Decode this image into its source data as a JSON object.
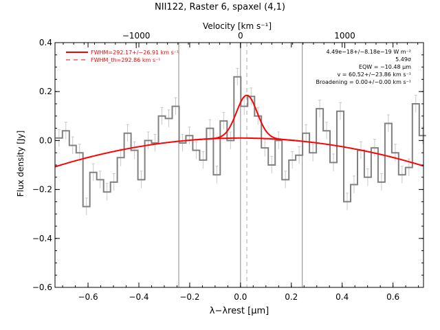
{
  "chart_data": {
    "type": "line",
    "title": "NII122, Raster 6, spaxel (4,1)",
    "xlabel": "λ−λrest [μm]",
    "ylabel": "Flux density [Jy]",
    "top_axis_label": "Velocity [km s⁻¹]",
    "xlim": [
      -0.73,
      0.72
    ],
    "ylim": [
      -0.6,
      0.4
    ],
    "top_xlim": [
      -1779,
      1755
    ],
    "x_ticks": [
      -0.6,
      -0.4,
      -0.2,
      0.0,
      0.2,
      0.4,
      0.6
    ],
    "x_tick_labels": [
      "−0.6",
      "−0.4",
      "−0.2",
      "0.0",
      "0.2",
      "0.4",
      "0.6"
    ],
    "y_ticks": [
      -0.6,
      -0.4,
      -0.2,
      0.0,
      0.2,
      0.4
    ],
    "y_tick_labels": [
      "−0.6",
      "−0.4",
      "−0.2",
      "0.0",
      "0.2",
      "0.4"
    ],
    "top_ticks": [
      -1000,
      0,
      1000
    ],
    "top_tick_labels": [
      "−1000",
      "0",
      "1000"
    ],
    "vertical_lines_solid": [
      -0.243,
      0.0,
      0.243
    ],
    "vertical_line_dashed": 0.0248,
    "legend": [
      {
        "label": "FWHM=292.17+/−26.91 km s⁻¹",
        "style": "solid",
        "color": "#ff0000"
      },
      {
        "label": "FWHM_th=292.86 km s⁻¹",
        "style": "dashed",
        "color": "#ff0000"
      }
    ],
    "annotations": [
      "4.49e−18+/−8.18e−19 W m⁻²",
      "5.49σ",
      "EQW = −10.48 μm",
      "v = 60.52+/−23.86 km s⁻¹",
      "Broadening = 0.00+/−0.00 km s⁻¹"
    ],
    "fit": {
      "baseline_quadratic": [
        0.01,
        0.0,
        -0.22
      ],
      "gaussian": {
        "amplitude": 0.175,
        "center": 0.0248,
        "sigma": 0.0406
      },
      "color": "#ff0000"
    },
    "series": [
      {
        "type": "step",
        "color": "#808080",
        "x": [
          -0.7278,
          -0.7008,
          -0.6738,
          -0.6468,
          -0.6198,
          -0.5928,
          -0.5658,
          -0.5388,
          -0.5118,
          -0.4848,
          -0.4578,
          -0.4308,
          -0.4038,
          -0.3768,
          -0.3498,
          -0.3228,
          -0.2958,
          -0.2688,
          -0.2418,
          -0.2148,
          -0.1878,
          -0.1608,
          -0.1338,
          -0.1068,
          -0.0798,
          -0.0528,
          -0.0258,
          0.0012,
          0.0282,
          0.0552,
          0.0822,
          0.1092,
          0.1362,
          0.1632,
          0.1902,
          0.2172,
          0.2442,
          0.2712,
          0.2982,
          0.3252,
          0.3522,
          0.3792,
          0.4062,
          0.4332,
          0.4602,
          0.4872,
          0.5142,
          0.5412,
          0.5682,
          0.5952,
          0.6222,
          0.6492,
          0.6762,
          0.7032
        ],
        "y": [
          0.01,
          0.04,
          -0.02,
          -0.05,
          -0.27,
          -0.13,
          -0.16,
          -0.21,
          -0.17,
          -0.07,
          0.03,
          -0.04,
          -0.16,
          0.0,
          -0.01,
          0.1,
          0.09,
          0.14,
          -0.01,
          0.02,
          -0.04,
          -0.08,
          0.05,
          -0.14,
          0.08,
          0.0,
          0.26,
          0.14,
          0.18,
          0.1,
          -0.03,
          -0.1,
          0.0,
          -0.16,
          -0.08,
          -0.06,
          0.03,
          -0.05,
          0.13,
          0.04,
          -0.09,
          0.12,
          -0.25,
          -0.18,
          -0.04,
          -0.15,
          -0.03,
          -0.17,
          0.07,
          -0.05,
          -0.14,
          -0.11,
          0.15,
          0.02
        ],
        "error": [
          0.035,
          0.035,
          0.035,
          0.035,
          0.035,
          0.035,
          0.035,
          0.035,
          0.035,
          0.035,
          0.035,
          0.035,
          0.035,
          0.035,
          0.035,
          0.035,
          0.035,
          0.035,
          0.035,
          0.035,
          0.035,
          0.035,
          0.035,
          0.035,
          0.035,
          0.035,
          0.035,
          0.035,
          0.035,
          0.035,
          0.035,
          0.035,
          0.035,
          0.035,
          0.035,
          0.035,
          0.035,
          0.035,
          0.035,
          0.035,
          0.035,
          0.035,
          0.035,
          0.035,
          0.035,
          0.035,
          0.035,
          0.035,
          0.035,
          0.035,
          0.035,
          0.035,
          0.035,
          0.035
        ]
      }
    ],
    "grid": false,
    "legend_placement": "top-left"
  }
}
